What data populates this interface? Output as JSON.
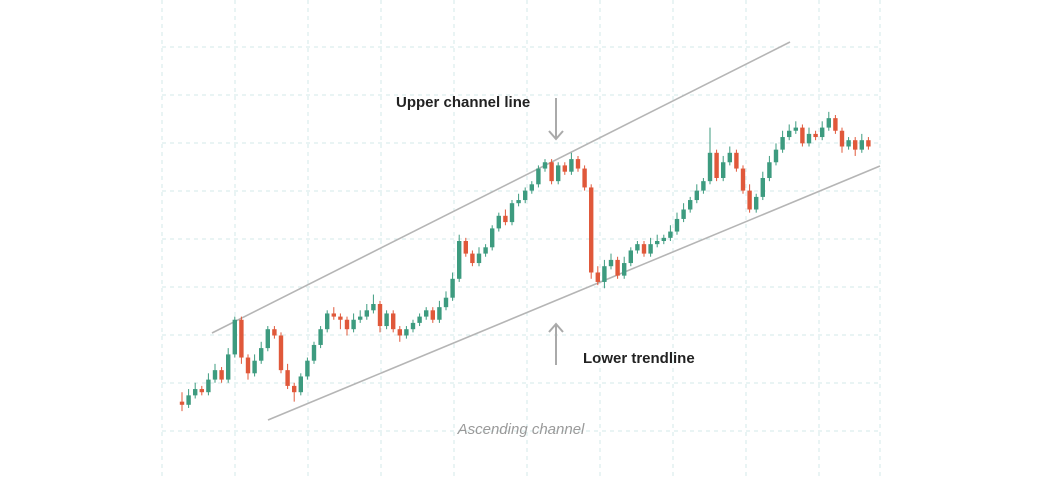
{
  "chart_data": {
    "type": "candlestick",
    "title": "Ascending channel",
    "annotations": {
      "upper": "Upper channel line",
      "lower": "Lower trendline"
    },
    "grid": true,
    "ylim": [
      0,
      100
    ],
    "colors": {
      "up": "#3d9b7f",
      "down": "#e0583a",
      "channel_line": "#b5b5b5",
      "arrow": "#aaaaaa",
      "grid": "#d3e8ea"
    },
    "candles": [
      [
        9,
        8,
        12,
        6
      ],
      [
        8,
        11,
        13,
        7
      ],
      [
        11,
        13,
        15,
        10
      ],
      [
        13,
        12,
        14,
        11
      ],
      [
        12,
        16,
        18,
        11
      ],
      [
        16,
        19,
        21,
        15
      ],
      [
        19,
        16,
        20,
        15
      ],
      [
        16,
        24,
        26,
        15
      ],
      [
        24,
        35,
        36,
        23
      ],
      [
        35,
        23,
        36,
        21
      ],
      [
        23,
        18,
        24,
        16
      ],
      [
        18,
        22,
        24,
        17
      ],
      [
        22,
        26,
        28,
        21
      ],
      [
        26,
        32,
        33,
        25
      ],
      [
        32,
        30,
        33,
        29
      ],
      [
        30,
        19,
        31,
        18
      ],
      [
        19,
        14,
        21,
        13
      ],
      [
        14,
        12,
        15,
        9
      ],
      [
        12,
        17,
        18,
        11
      ],
      [
        17,
        22,
        23,
        16
      ],
      [
        22,
        27,
        28,
        21
      ],
      [
        27,
        32,
        33,
        26
      ],
      [
        32,
        37,
        38,
        31
      ],
      [
        37,
        36,
        39,
        35
      ],
      [
        36,
        35,
        37,
        32
      ],
      [
        35,
        32,
        36,
        30
      ],
      [
        32,
        35,
        37,
        31
      ],
      [
        35,
        36,
        38,
        34
      ],
      [
        36,
        38,
        40,
        35
      ],
      [
        38,
        40,
        43,
        37
      ],
      [
        40,
        33,
        41,
        31
      ],
      [
        33,
        37,
        38,
        32
      ],
      [
        37,
        32,
        38,
        31
      ],
      [
        32,
        30,
        33,
        28
      ],
      [
        30,
        32,
        33,
        29
      ],
      [
        32,
        34,
        35,
        31
      ],
      [
        34,
        36,
        37,
        33
      ],
      [
        36,
        38,
        39,
        35
      ],
      [
        38,
        35,
        39,
        34
      ],
      [
        35,
        39,
        41,
        34
      ],
      [
        39,
        42,
        44,
        38
      ],
      [
        42,
        48,
        50,
        41
      ],
      [
        48,
        60,
        62,
        47
      ],
      [
        60,
        56,
        61,
        55
      ],
      [
        56,
        53,
        57,
        52
      ],
      [
        53,
        56,
        58,
        52
      ],
      [
        56,
        58,
        59,
        55
      ],
      [
        58,
        64,
        65,
        57
      ],
      [
        64,
        68,
        69,
        63
      ],
      [
        68,
        66,
        70,
        65
      ],
      [
        66,
        72,
        73,
        65
      ],
      [
        72,
        73,
        75,
        71
      ],
      [
        73,
        76,
        77,
        72
      ],
      [
        76,
        78,
        79,
        75
      ],
      [
        78,
        83,
        84,
        77
      ],
      [
        83,
        85,
        86,
        82
      ],
      [
        85,
        79,
        86,
        78
      ],
      [
        79,
        84,
        85,
        78
      ],
      [
        84,
        82,
        85,
        81
      ],
      [
        82,
        86,
        88,
        81
      ],
      [
        86,
        83,
        87,
        82
      ],
      [
        83,
        77,
        84,
        76
      ],
      [
        77,
        50,
        78,
        48
      ],
      [
        50,
        47,
        52,
        46
      ],
      [
        47,
        52,
        54,
        45
      ],
      [
        52,
        54,
        56,
        51
      ],
      [
        54,
        49,
        55,
        48
      ],
      [
        49,
        53,
        55,
        48
      ],
      [
        53,
        57,
        58,
        52
      ],
      [
        57,
        59,
        60,
        56
      ],
      [
        59,
        56,
        60,
        55
      ],
      [
        56,
        59,
        61,
        55
      ],
      [
        59,
        60,
        62,
        58
      ],
      [
        60,
        61,
        62,
        59
      ],
      [
        61,
        63,
        65,
        60
      ],
      [
        63,
        67,
        69,
        62
      ],
      [
        67,
        70,
        72,
        66
      ],
      [
        70,
        73,
        74,
        69
      ],
      [
        73,
        76,
        78,
        72
      ],
      [
        76,
        79,
        80,
        75
      ],
      [
        79,
        88,
        96,
        78
      ],
      [
        88,
        80,
        89,
        79
      ],
      [
        80,
        85,
        87,
        79
      ],
      [
        85,
        88,
        90,
        84
      ],
      [
        88,
        83,
        89,
        82
      ],
      [
        83,
        76,
        84,
        75
      ],
      [
        76,
        70,
        78,
        69
      ],
      [
        70,
        74,
        75,
        69
      ],
      [
        74,
        80,
        82,
        73
      ],
      [
        80,
        85,
        87,
        79
      ],
      [
        85,
        89,
        91,
        84
      ],
      [
        89,
        93,
        95,
        88
      ],
      [
        93,
        95,
        97,
        92
      ],
      [
        95,
        96,
        98,
        94
      ],
      [
        96,
        91,
        97,
        90
      ],
      [
        91,
        94,
        96,
        90
      ],
      [
        94,
        93,
        95,
        92
      ],
      [
        93,
        96,
        98,
        92
      ],
      [
        96,
        99,
        101,
        95
      ],
      [
        99,
        95,
        100,
        94
      ],
      [
        95,
        90,
        96,
        88
      ],
      [
        90,
        92,
        93,
        89
      ],
      [
        92,
        89,
        93,
        87
      ],
      [
        89,
        92,
        94,
        88
      ],
      [
        92,
        90,
        93,
        89
      ]
    ]
  }
}
